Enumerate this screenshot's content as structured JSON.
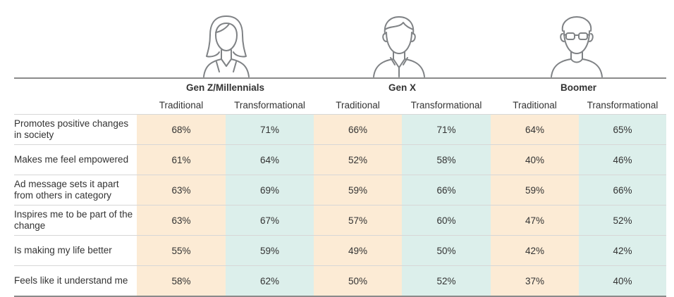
{
  "colors": {
    "traditional_bg": "#fcebd5",
    "transformational_bg": "#dcefeb",
    "icon_stroke": "#7f8285"
  },
  "icons": [
    "woman-avatar-icon",
    "man-avatar-icon",
    "glasses-man-avatar-icon"
  ],
  "groups": [
    {
      "name": "Gen Z/Millennials"
    },
    {
      "name": "Gen X"
    },
    {
      "name": "Boomer"
    }
  ],
  "subheaders": [
    "Traditional",
    "Transformational",
    "Traditional",
    "Transformational",
    "Traditional",
    "Transformational"
  ],
  "rows": [
    {
      "label": "Promotes positive changes in society",
      "values": [
        "68%",
        "71%",
        "66%",
        "71%",
        "64%",
        "65%"
      ]
    },
    {
      "label": "Makes me feel empowered",
      "values": [
        "61%",
        "64%",
        "52%",
        "58%",
        "40%",
        "46%"
      ]
    },
    {
      "label": "Ad message sets it apart from others in category",
      "values": [
        "63%",
        "69%",
        "59%",
        "66%",
        "59%",
        "66%"
      ]
    },
    {
      "label": "Inspires me to be part of the change",
      "values": [
        "63%",
        "67%",
        "57%",
        "60%",
        "47%",
        "52%"
      ]
    },
    {
      "label": "Is making my life better",
      "values": [
        "55%",
        "59%",
        "49%",
        "50%",
        "42%",
        "42%"
      ]
    },
    {
      "label": "Feels like it understand me",
      "values": [
        "58%",
        "62%",
        "50%",
        "52%",
        "37%",
        "40%"
      ]
    }
  ]
}
